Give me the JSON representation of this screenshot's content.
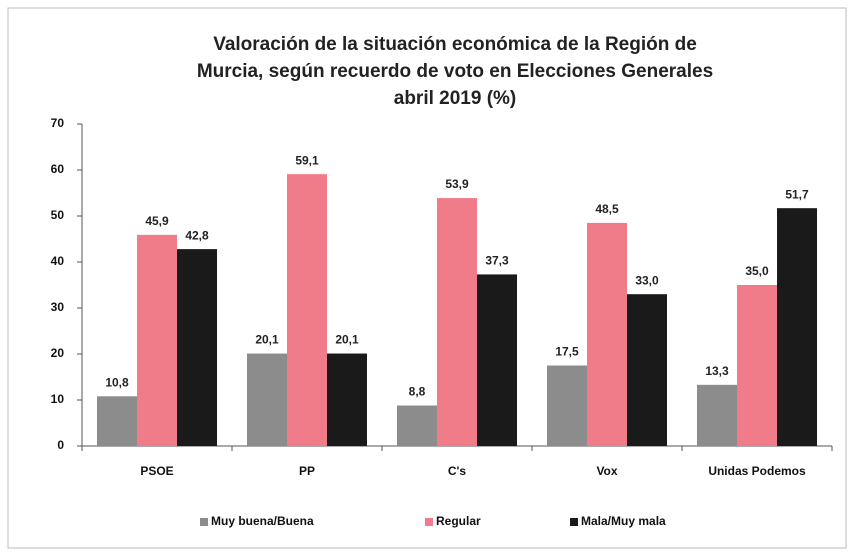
{
  "chart_data": {
    "type": "bar",
    "title": [
      "Valoración de la situación económica de la Región de",
      "Murcia, según recuerdo de voto en Elecciones Generales",
      "abril 2019 (%)"
    ],
    "categories": [
      "PSOE",
      "PP",
      "C's",
      "Vox",
      "Unidas Podemos"
    ],
    "series": [
      {
        "name": "Muy buena/Buena",
        "color": "#8c8c8c",
        "values": [
          10.8,
          20.1,
          8.8,
          17.5,
          13.3
        ],
        "value_labels": [
          "10,8",
          "20,1",
          "8,8",
          "17,5",
          "13,3"
        ]
      },
      {
        "name": "Regular",
        "color": "#f07c8a",
        "values": [
          45.9,
          59.1,
          53.9,
          48.5,
          35.0
        ],
        "value_labels": [
          "45,9",
          "59,1",
          "53,9",
          "48,5",
          "35,0"
        ]
      },
      {
        "name": "Mala/Muy mala",
        "color": "#1a1a1a",
        "values": [
          42.8,
          20.1,
          37.3,
          33.0,
          51.7
        ],
        "value_labels": [
          "42,8",
          "20,1",
          "37,3",
          "33,0",
          "51,7"
        ]
      }
    ],
    "ylim": [
      0,
      70
    ],
    "yticks": [
      0,
      10,
      20,
      30,
      40,
      50,
      60,
      70
    ],
    "grid": false,
    "legend": "bottom"
  }
}
